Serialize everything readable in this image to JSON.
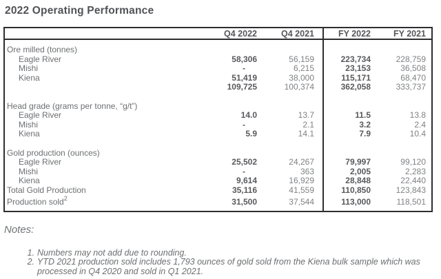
{
  "page_title": "2022 Operating Performance",
  "table": {
    "columns": [
      "Q4 2022",
      "Q4 2021",
      "FY 2022",
      "FY 2021"
    ],
    "sections": [
      {
        "header": "Ore milled (tonnes)",
        "rows": [
          {
            "label": "Eagle River",
            "indent": true,
            "values": [
              "58,306",
              "56,159",
              "223,734",
              "228,759"
            ]
          },
          {
            "label": "Mishi",
            "indent": true,
            "values": [
              "-",
              "6,215",
              "23,153",
              "36,508"
            ]
          },
          {
            "label": "Kiena",
            "indent": true,
            "values": [
              "51,419",
              "38,000",
              "115,171",
              "68,470"
            ]
          },
          {
            "label": "",
            "indent": false,
            "values": [
              "109,725",
              "100,374",
              "362,058",
              "333,737"
            ]
          }
        ]
      },
      {
        "header": "Head grade (grams per tonne, “g/t”)",
        "rows": [
          {
            "label": "Eagle River",
            "indent": true,
            "values": [
              "14.0",
              "13.7",
              "11.5",
              "13.8"
            ]
          },
          {
            "label": "Mishi",
            "indent": true,
            "values": [
              "-",
              "2.1",
              "3.2",
              "2.4"
            ]
          },
          {
            "label": "Kiena",
            "indent": true,
            "values": [
              "5.9",
              "14.1",
              "7.9",
              "10.4"
            ]
          }
        ]
      },
      {
        "header": "Gold production (ounces)",
        "rows": [
          {
            "label": "Eagle River",
            "indent": true,
            "values": [
              "25,502",
              "24,267",
              "79,997",
              "99,120"
            ]
          },
          {
            "label": "Mishi",
            "indent": true,
            "values": [
              "-",
              "363",
              "2,005",
              "2,283"
            ]
          },
          {
            "label": "Kiena",
            "indent": true,
            "values": [
              "9,614",
              "16,929",
              "28,848",
              "22,440"
            ]
          },
          {
            "label": "Total Gold Production",
            "indent": false,
            "values": [
              "35,116",
              "41,559",
              "110,850",
              "123,843"
            ]
          },
          {
            "label": "Production sold",
            "label_superscript": "2",
            "indent": false,
            "values": [
              "31,500",
              "37,544",
              "113,000",
              "118,501"
            ]
          }
        ]
      }
    ]
  },
  "notes": {
    "heading": "Notes:",
    "items": [
      "Numbers may not add due to rounding.",
      "YTD 2021 production sold includes 1,793 ounces of gold sold from the Kiena bulk sample which was processed in Q4 2020 and sold in Q1 2021."
    ]
  },
  "colors": {
    "background": "#ffffff",
    "table_border": "#2d2d2f",
    "title_text": "#515256",
    "bold_value_text": "#58595c",
    "light_value_text": "#7f8184",
    "label_text": "#6c6e71"
  }
}
